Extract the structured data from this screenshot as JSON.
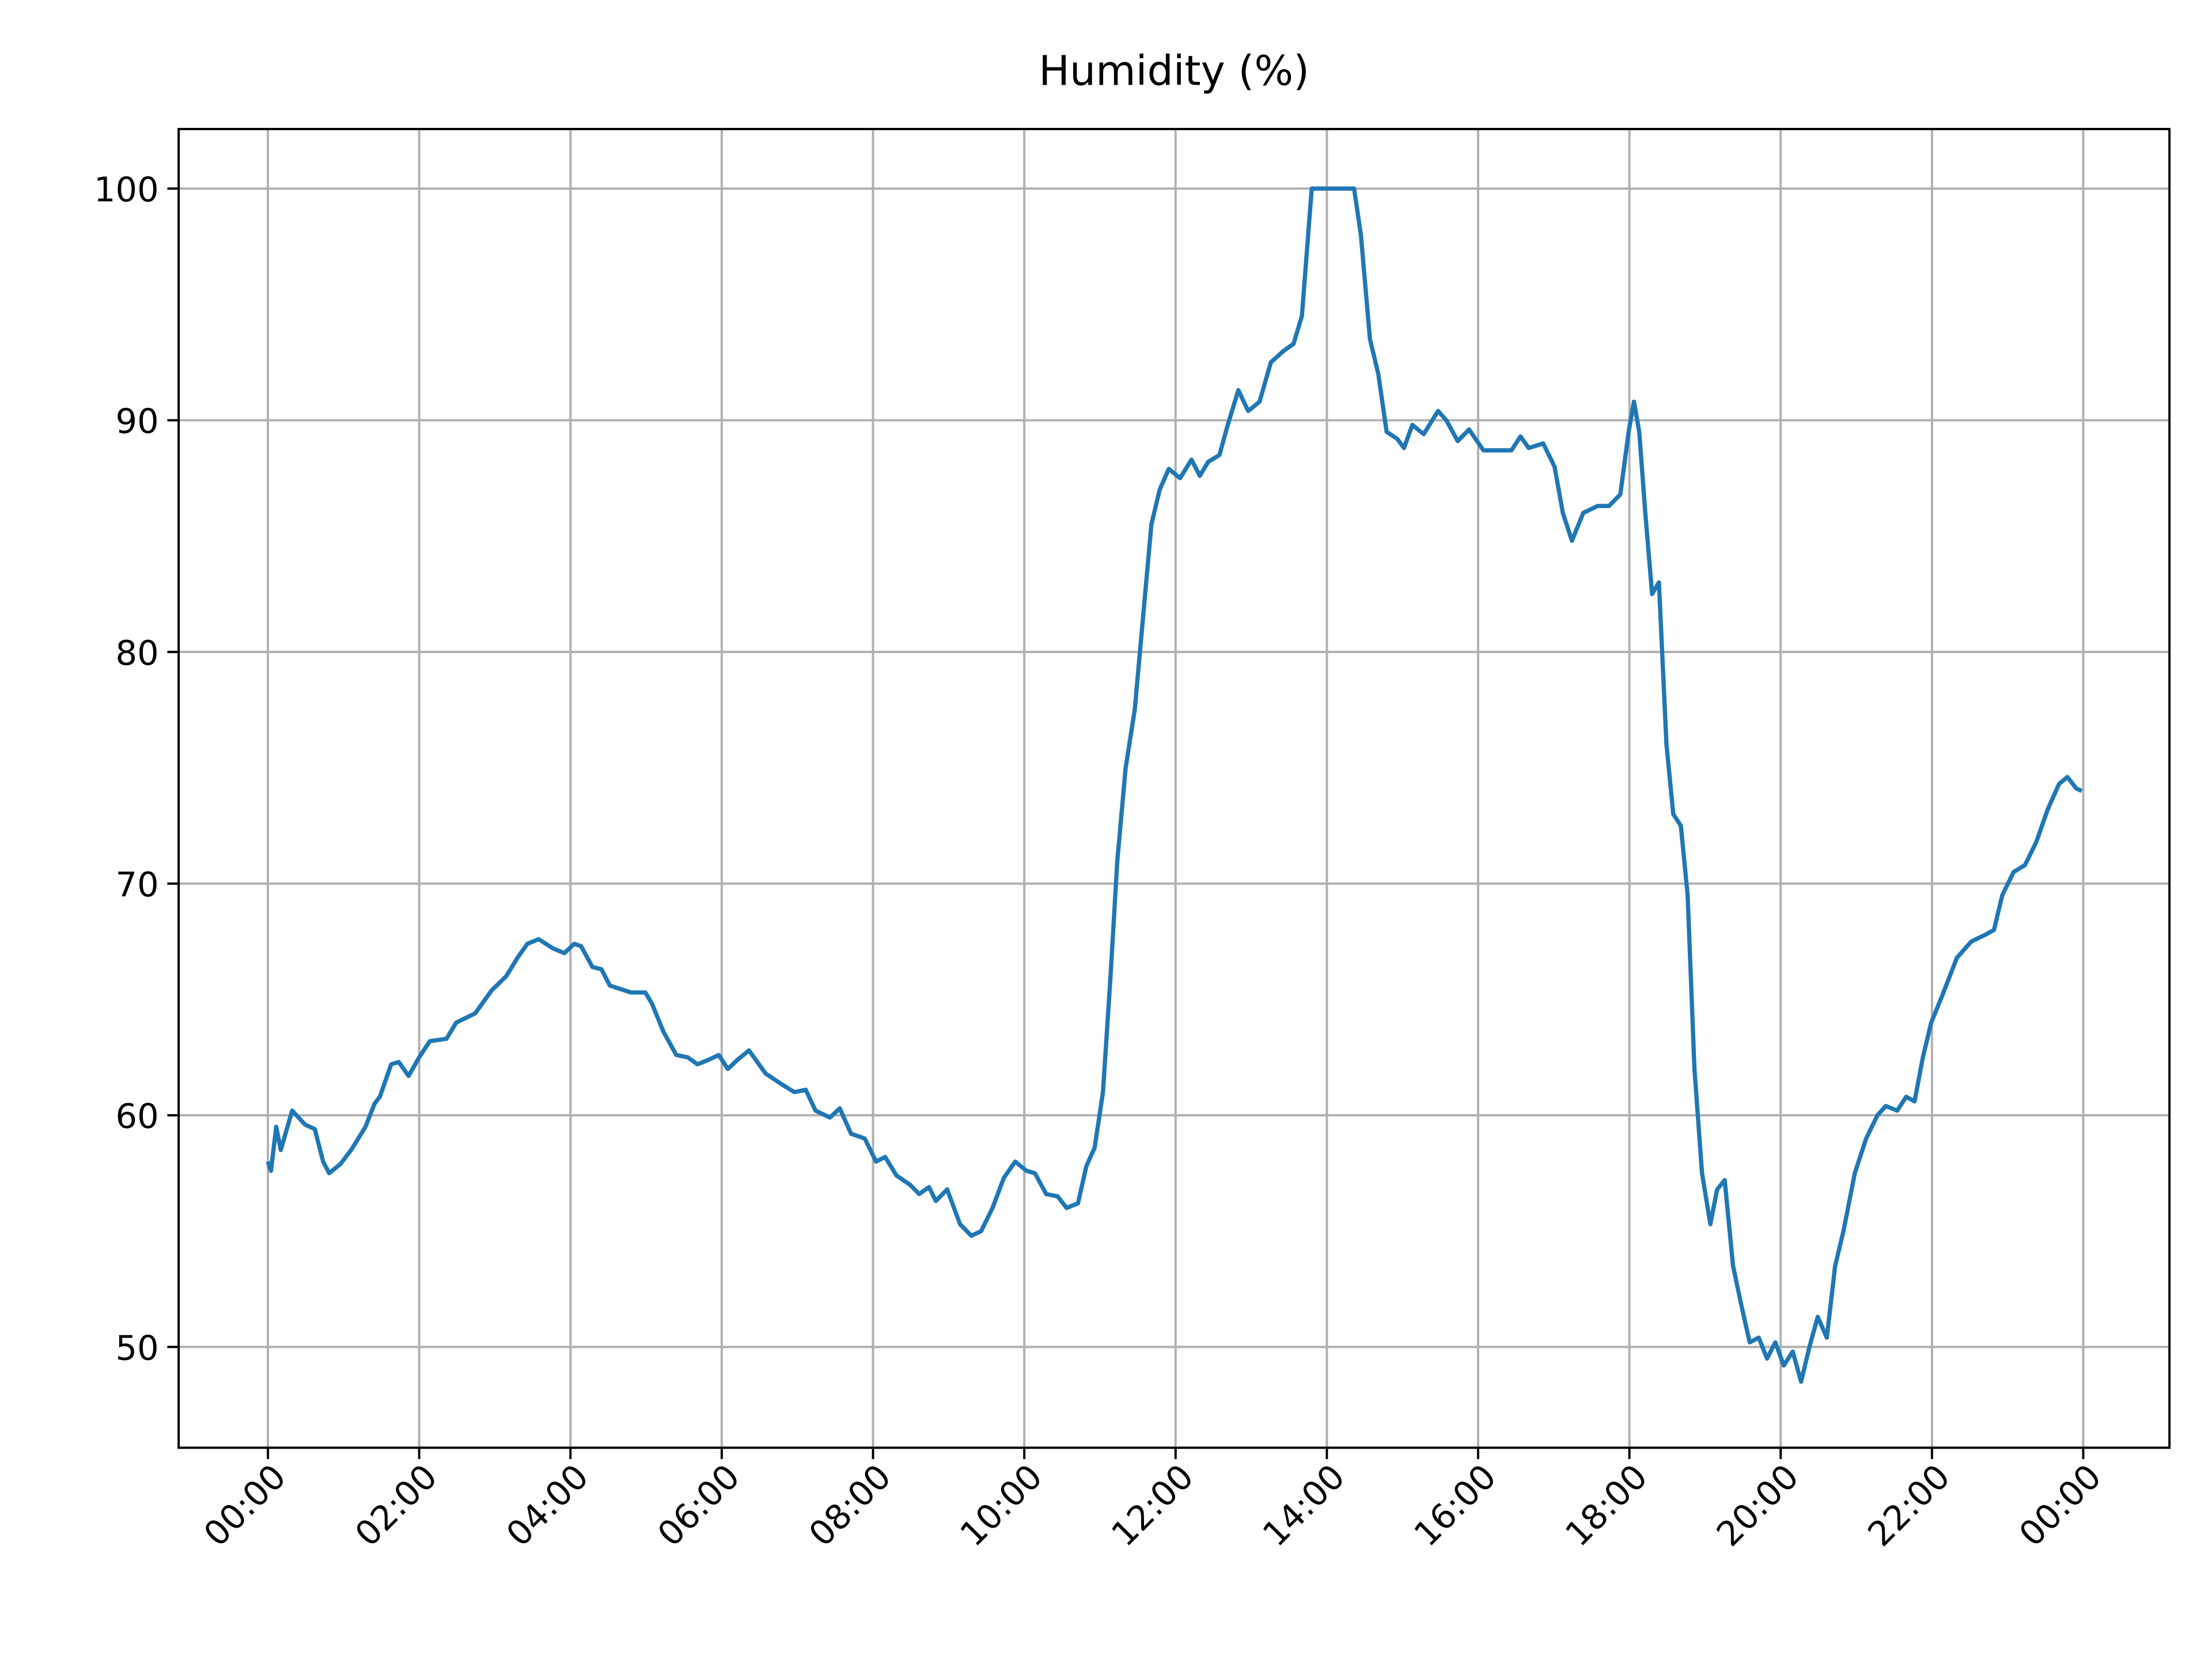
{
  "chart_data": {
    "type": "line",
    "title": "Humidity (%)",
    "x": [
      0,
      0.04,
      0.11,
      0.17,
      0.32,
      0.49,
      0.62,
      0.73,
      0.81,
      0.96,
      1.1,
      1.29,
      1.41,
      1.48,
      1.63,
      1.73,
      1.86,
      2.0,
      2.14,
      2.36,
      2.49,
      2.74,
      2.96,
      3.15,
      3.3,
      3.43,
      3.58,
      3.77,
      3.92,
      4.05,
      4.14,
      4.29,
      4.41,
      4.52,
      4.8,
      4.99,
      5.08,
      5.23,
      5.4,
      5.55,
      5.68,
      5.83,
      5.96,
      6.08,
      6.21,
      6.36,
      6.58,
      6.81,
      6.96,
      7.11,
      7.24,
      7.43,
      7.56,
      7.71,
      7.89,
      8.04,
      8.16,
      8.31,
      8.49,
      8.61,
      8.74,
      8.83,
      8.98,
      9.15,
      9.3,
      9.43,
      9.58,
      9.73,
      9.88,
      10.03,
      10.14,
      10.29,
      10.44,
      10.56,
      10.71,
      10.82,
      10.93,
      11.04,
      11.14,
      11.23,
      11.34,
      11.46,
      11.57,
      11.68,
      11.79,
      11.91,
      12.06,
      12.21,
      12.32,
      12.43,
      12.58,
      12.69,
      12.83,
      12.96,
      13.11,
      13.26,
      13.43,
      13.56,
      13.67,
      13.8,
      14.36,
      14.45,
      14.57,
      14.68,
      14.79,
      14.93,
      15.02,
      15.13,
      15.28,
      15.47,
      15.58,
      15.73,
      15.88,
      16.07,
      16.26,
      16.44,
      16.56,
      16.67,
      16.86,
      17.01,
      17.12,
      17.24,
      17.39,
      17.58,
      17.73,
      17.88,
      17.99,
      18.06,
      18.13,
      18.21,
      18.3,
      18.39,
      18.49,
      18.58,
      18.68,
      18.77,
      18.86,
      18.96,
      19.07,
      19.16,
      19.26,
      19.37,
      19.48,
      19.59,
      19.71,
      19.82,
      19.93,
      20.04,
      20.16,
      20.27,
      20.38,
      20.49,
      20.61,
      20.72,
      20.83,
      20.98,
      21.13,
      21.28,
      21.39,
      21.54,
      21.66,
      21.77,
      21.88,
      21.99,
      22.14,
      22.33,
      22.52,
      22.71,
      22.82,
      22.93,
      23.08,
      23.23,
      23.38,
      23.53,
      23.68,
      23.79,
      23.91,
      23.98
    ],
    "series": [
      {
        "color": "#1f77b4",
        "values": [
          58,
          57.6,
          59.5,
          58.5,
          60.2,
          59.6,
          59.4,
          58,
          57.5,
          57.9,
          58.5,
          59.5,
          60.5,
          60.8,
          62.2,
          62.3,
          61.7,
          62.5,
          63.2,
          63.3,
          64.0,
          64.4,
          65.4,
          66.0,
          66.8,
          67.4,
          67.6,
          67.2,
          67.0,
          67.4,
          67.3,
          66.4,
          66.3,
          65.6,
          65.3,
          65.3,
          64.8,
          63.6,
          62.6,
          62.5,
          62.2,
          62.4,
          62.6,
          62.0,
          62.4,
          62.8,
          61.8,
          61.3,
          61.0,
          61.1,
          60.2,
          59.9,
          60.3,
          59.2,
          59.0,
          58.0,
          58.2,
          57.4,
          57.0,
          56.6,
          56.9,
          56.3,
          56.8,
          55.3,
          54.8,
          55.0,
          56.0,
          57.3,
          58.0,
          57.6,
          57.5,
          56.6,
          56.5,
          56.0,
          56.2,
          57.8,
          58.6,
          61.0,
          66.0,
          71.0,
          75.0,
          77.5,
          81.5,
          85.5,
          87.0,
          87.9,
          87.5,
          88.3,
          87.6,
          88.2,
          88.5,
          89.8,
          91.3,
          90.4,
          90.8,
          92.5,
          93.0,
          93.3,
          94.5,
          100,
          100,
          98,
          93.5,
          92.0,
          89.5,
          89.2,
          88.8,
          89.8,
          89.4,
          90.4,
          90.0,
          89.1,
          89.6,
          88.7,
          88.7,
          88.7,
          89.3,
          88.8,
          89.0,
          88.0,
          86.0,
          84.8,
          86.0,
          86.3,
          86.3,
          86.8,
          89.5,
          90.8,
          89.5,
          86.0,
          82.5,
          83.0,
          76.0,
          73.0,
          72.5,
          69.5,
          62,
          57.5,
          55.3,
          56.8,
          57.2,
          53.5,
          51.8,
          50.2,
          50.4,
          49.5,
          50.2,
          49.2,
          49.8,
          48.5,
          50.0,
          51.3,
          50.4,
          53.5,
          55.0,
          57.5,
          59.0,
          60.0,
          60.4,
          60.2,
          60.8,
          60.6,
          62.5,
          64.0,
          65.2,
          66.8,
          67.5,
          67.8,
          68.0,
          69.5,
          70.5,
          70.8,
          71.8,
          73.2,
          74.3,
          74.6,
          74.1,
          74.0
        ]
      }
    ],
    "xlim": [
      -1.18,
      25.14
    ],
    "ylim": [
      45.65,
      102.57
    ],
    "xticks": [
      {
        "value": 0,
        "label": "00:00"
      },
      {
        "value": 2,
        "label": "02:00"
      },
      {
        "value": 4,
        "label": "04:00"
      },
      {
        "value": 6,
        "label": "06:00"
      },
      {
        "value": 8,
        "label": "08:00"
      },
      {
        "value": 10,
        "label": "10:00"
      },
      {
        "value": 12,
        "label": "12:00"
      },
      {
        "value": 14,
        "label": "14:00"
      },
      {
        "value": 16,
        "label": "16:00"
      },
      {
        "value": 18,
        "label": "18:00"
      },
      {
        "value": 20,
        "label": "20:00"
      },
      {
        "value": 22,
        "label": "22:00"
      },
      {
        "value": 24,
        "label": "00:00"
      }
    ],
    "yticks": [
      50,
      60,
      70,
      80,
      90,
      100
    ],
    "grid": true
  }
}
